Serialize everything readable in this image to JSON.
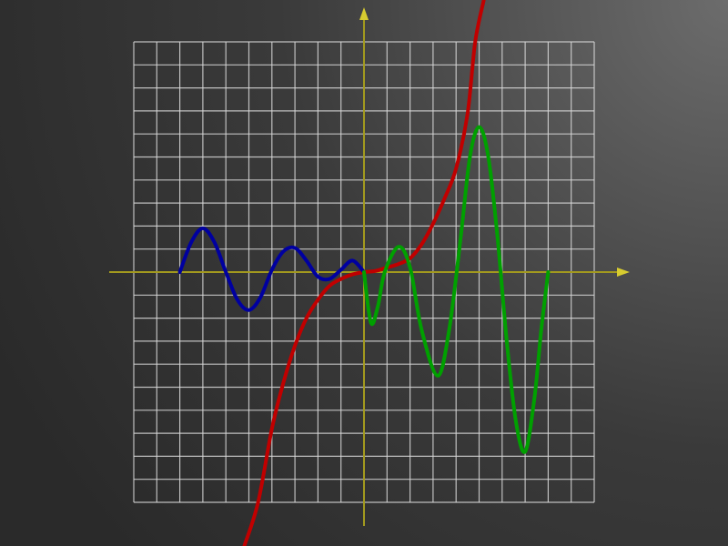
{
  "chart_data": {
    "type": "line",
    "xlim": [
      -10,
      10
    ],
    "ylim": [
      -10,
      10
    ],
    "xticks": [
      -10,
      -9,
      -8,
      -7,
      -6,
      -5,
      -4,
      -3,
      -2,
      -1,
      0,
      1,
      2,
      3,
      4,
      5,
      6,
      7,
      8,
      9,
      10
    ],
    "yticks": [
      -10,
      -9,
      -8,
      -7,
      -6,
      -5,
      -4,
      -3,
      -2,
      -1,
      0,
      1,
      2,
      3,
      4,
      5,
      6,
      7,
      8,
      9,
      10
    ],
    "grid": true,
    "series": [
      {
        "color": "#c00000",
        "x": [
          -5.2,
          -4.6,
          -4,
          -3.5,
          -3,
          -2.5,
          -2,
          -1.5,
          -1,
          -0.5,
          0,
          0.5,
          1,
          1.5,
          2,
          2.5,
          3,
          3.5,
          4,
          4.5,
          4.83,
          5.2
        ],
        "values": [
          -11.9,
          -10,
          -6.8,
          -4.8,
          -3.2,
          -2,
          -1.2,
          -0.6,
          -0.3,
          -0.1,
          0,
          0.05,
          0.2,
          0.35,
          0.6,
          1.2,
          2.1,
          3.2,
          4.5,
          6.9,
          10,
          11.8
        ]
      },
      {
        "color": "#0000a0",
        "x": [
          -8,
          -7.5,
          -7,
          -6.5,
          -6,
          -5.5,
          -5,
          -4.5,
          -4,
          -3.5,
          -3,
          -2.5,
          -2,
          -1.5,
          -1,
          -0.5,
          0
        ],
        "values": [
          0,
          1.3,
          1.9,
          1.3,
          0,
          -1.2,
          -1.65,
          -1.1,
          0.1,
          0.9,
          1.05,
          0.5,
          -0.2,
          -0.3,
          0.1,
          0.5,
          0
        ]
      },
      {
        "color": "#00a000",
        "x": [
          0,
          0.3,
          0.6,
          0.9,
          1.5,
          2,
          2.5,
          3.2,
          3.7,
          4.2,
          4.6,
          5,
          5.4,
          5.8,
          6.2,
          6.6,
          7,
          7.4,
          7.7,
          8
        ],
        "values": [
          0,
          -2.2,
          -1.5,
          0,
          1.1,
          0.2,
          -2.5,
          -4.5,
          -2.5,
          1.5,
          5,
          6.3,
          5,
          1.5,
          -3,
          -6.5,
          -7.8,
          -5.5,
          -2.5,
          0
        ]
      }
    ]
  }
}
